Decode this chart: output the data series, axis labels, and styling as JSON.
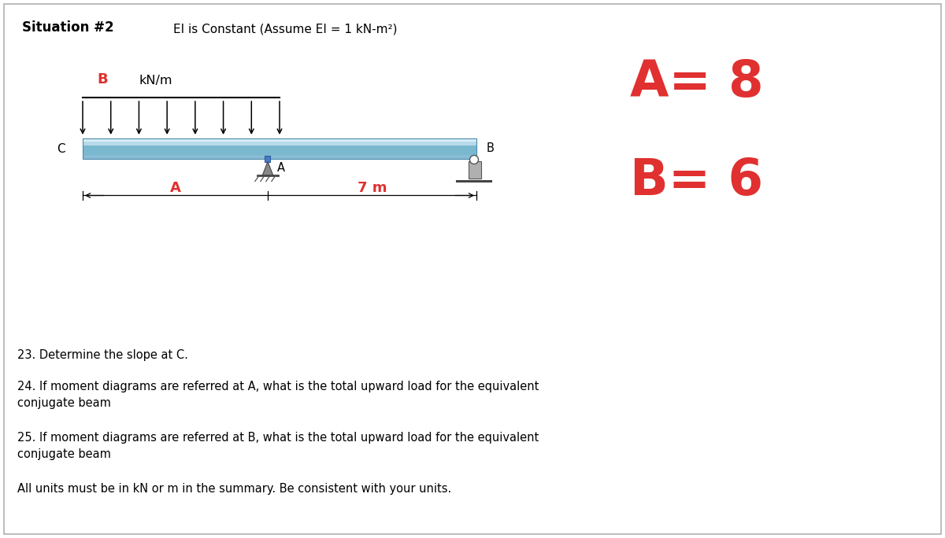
{
  "title": "Situation #2",
  "subtitle": "EI is Constant (Assume EI = 1 kN-m²)",
  "A_value": "A= 8",
  "B_value": "B= 6",
  "load_label": "B",
  "load_unit": "kN/m",
  "span_label": "7 m",
  "dim_label_A": "A",
  "point_A_label": "A",
  "point_B_label": "B",
  "point_C_label": "C",
  "questions": [
    "23. Determine the slope at C.",
    "24. If moment diagrams are referred at A, what is the total upward load for the equivalent\nconjugate beam",
    "25. If moment diagrams are referred at B, what is the total upward load for the equivalent\nconjugate beam"
  ],
  "note": "All units must be in kN or m in the summary. Be consistent with your units.",
  "bg_color": "#ffffff",
  "red_color": "#e03030",
  "text_color": "#000000",
  "beam_top_color": "#c8e4f0",
  "beam_mid_color": "#6aaecc",
  "beam_bot_color": "#a8d0e4",
  "beam_outline_color": "#4a8aaa"
}
